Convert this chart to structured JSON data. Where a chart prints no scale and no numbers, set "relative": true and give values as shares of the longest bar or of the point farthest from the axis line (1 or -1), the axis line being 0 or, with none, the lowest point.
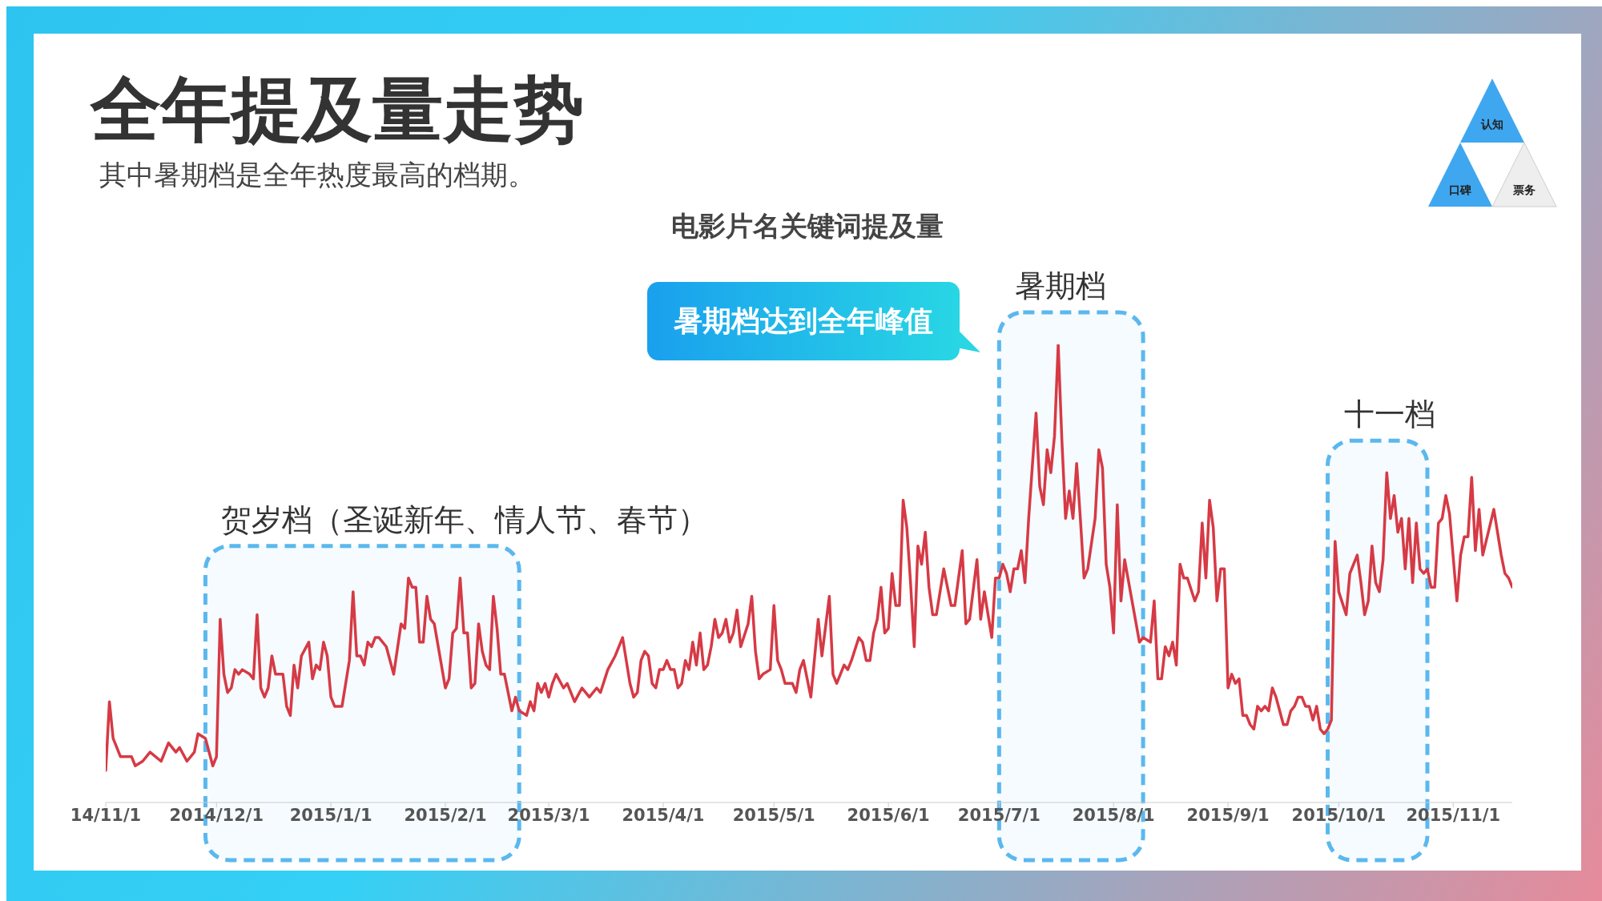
{
  "chart_data": {
    "type": "line",
    "title": "全年提及量走势",
    "subtitle": "其中暑期档是全年热度最高的档期。",
    "xlabel": "电影片名关键词提及量",
    "relative": true,
    "color": "#d63a45",
    "marker": "none",
    "line_style": "solid",
    "x": [
      "2014-11-01",
      "2014-11-02",
      "2014-11-03",
      "2014-11-05",
      "2014-11-08",
      "2014-11-09",
      "2014-11-11",
      "2014-11-13",
      "2014-11-16",
      "2014-11-18",
      "2014-11-20",
      "2014-11-21",
      "2014-11-23",
      "2014-11-25",
      "2014-11-26",
      "2014-11-28",
      "2014-11-30",
      "2014-12-01",
      "2014-12-02",
      "2014-12-03",
      "2014-12-04",
      "2014-12-05",
      "2014-12-06",
      "2014-12-07",
      "2014-12-08",
      "2014-12-10",
      "2014-12-11",
      "2014-12-12",
      "2014-12-13",
      "2014-12-14",
      "2014-12-15",
      "2014-12-16",
      "2014-12-17",
      "2014-12-19",
      "2014-12-20",
      "2014-12-21",
      "2014-12-22",
      "2014-12-23",
      "2014-12-24",
      "2014-12-26",
      "2014-12-27",
      "2014-12-28",
      "2014-12-29",
      "2014-12-30",
      "2014-12-31",
      "2015-01-01",
      "2015-01-02",
      "2015-01-04",
      "2015-01-06",
      "2015-01-07",
      "2015-01-08",
      "2015-01-09",
      "2015-01-10",
      "2015-01-11",
      "2015-01-12",
      "2015-01-13",
      "2015-01-14",
      "2015-01-16",
      "2015-01-18",
      "2015-01-20",
      "2015-01-21",
      "2015-01-22",
      "2015-01-23",
      "2015-01-24",
      "2015-01-25",
      "2015-01-26",
      "2015-01-27",
      "2015-01-28",
      "2015-01-29",
      "2015-02-01",
      "2015-02-02",
      "2015-02-03",
      "2015-02-04",
      "2015-02-05",
      "2015-02-06",
      "2015-02-07",
      "2015-02-08",
      "2015-02-09",
      "2015-02-10",
      "2015-02-11",
      "2015-02-12",
      "2015-02-13",
      "2015-02-14",
      "2015-02-15",
      "2015-02-16",
      "2015-02-17",
      "2015-02-19",
      "2015-02-20",
      "2015-02-21",
      "2015-02-23",
      "2015-02-24",
      "2015-02-25",
      "2015-02-26",
      "2015-02-27",
      "2015-02-28",
      "2015-03-01",
      "2015-03-02",
      "2015-03-03",
      "2015-03-05",
      "2015-03-06",
      "2015-03-08",
      "2015-03-10",
      "2015-03-12",
      "2015-03-14",
      "2015-03-15",
      "2015-03-17",
      "2015-03-19",
      "2015-03-21",
      "2015-03-23",
      "2015-03-24",
      "2015-03-25",
      "2015-03-26",
      "2015-03-27",
      "2015-03-28",
      "2015-03-29",
      "2015-03-30",
      "2015-03-31",
      "2015-04-01",
      "2015-04-02",
      "2015-04-03",
      "2015-04-04",
      "2015-04-05",
      "2015-04-06",
      "2015-04-07",
      "2015-04-08",
      "2015-04-09",
      "2015-04-10",
      "2015-04-11",
      "2015-04-12",
      "2015-04-13",
      "2015-04-14",
      "2015-04-15",
      "2015-04-16",
      "2015-04-17",
      "2015-04-18",
      "2015-04-19",
      "2015-04-20",
      "2015-04-21",
      "2015-04-22",
      "2015-04-24",
      "2015-04-25",
      "2015-04-26",
      "2015-04-27",
      "2015-04-28",
      "2015-04-30",
      "2015-05-01",
      "2015-05-02",
      "2015-05-03",
      "2015-05-04",
      "2015-05-05",
      "2015-05-06",
      "2015-05-07",
      "2015-05-08",
      "2015-05-09",
      "2015-05-10",
      "2015-05-11",
      "2015-05-13",
      "2015-05-14",
      "2015-05-16",
      "2015-05-17",
      "2015-05-18",
      "2015-05-20",
      "2015-05-21",
      "2015-05-22",
      "2015-05-24",
      "2015-05-25",
      "2015-05-26",
      "2015-05-27",
      "2015-05-28",
      "2015-05-29",
      "2015-05-30",
      "2015-05-31",
      "2015-06-01",
      "2015-06-02",
      "2015-06-03",
      "2015-06-04",
      "2015-06-05",
      "2015-06-06",
      "2015-06-07",
      "2015-06-08",
      "2015-06-09",
      "2015-06-10",
      "2015-06-11",
      "2015-06-12",
      "2015-06-13",
      "2015-06-14",
      "2015-06-16",
      "2015-06-17",
      "2015-06-18",
      "2015-06-19",
      "2015-06-21",
      "2015-06-22",
      "2015-06-23",
      "2015-06-25",
      "2015-06-26",
      "2015-06-27",
      "2015-06-28",
      "2015-06-29",
      "2015-06-30",
      "2015-07-01",
      "2015-07-02",
      "2015-07-03",
      "2015-07-04",
      "2015-07-05",
      "2015-07-06",
      "2015-07-07",
      "2015-07-08",
      "2015-07-09",
      "2015-07-11",
      "2015-07-12",
      "2015-07-13",
      "2015-07-14",
      "2015-07-15",
      "2015-07-16",
      "2015-07-17",
      "2015-07-18",
      "2015-07-19",
      "2015-07-20",
      "2015-07-21",
      "2015-07-22",
      "2015-07-23",
      "2015-07-24",
      "2015-07-25",
      "2015-07-27",
      "2015-07-28",
      "2015-07-29",
      "2015-07-30",
      "2015-07-31",
      "2015-08-01",
      "2015-08-02",
      "2015-08-03",
      "2015-08-04",
      "2015-08-06",
      "2015-08-08",
      "2015-08-09",
      "2015-08-11",
      "2015-08-12",
      "2015-08-13",
      "2015-08-14",
      "2015-08-15",
      "2015-08-16",
      "2015-08-17",
      "2015-08-18",
      "2015-08-19",
      "2015-08-20",
      "2015-08-21",
      "2015-08-23",
      "2015-08-24",
      "2015-08-25",
      "2015-08-26",
      "2015-08-27",
      "2015-08-28",
      "2015-08-29",
      "2015-08-30",
      "2015-08-31",
      "2015-09-01",
      "2015-09-02",
      "2015-09-03",
      "2015-09-04",
      "2015-09-05",
      "2015-09-06",
      "2015-09-07",
      "2015-09-08",
      "2015-09-09",
      "2015-09-10",
      "2015-09-11",
      "2015-09-12",
      "2015-09-13",
      "2015-09-14",
      "2015-09-16",
      "2015-09-17",
      "2015-09-18",
      "2015-09-19",
      "2015-09-20",
      "2015-09-21",
      "2015-09-22",
      "2015-09-23",
      "2015-09-24",
      "2015-09-25",
      "2015-09-26",
      "2015-09-27",
      "2015-09-28",
      "2015-09-29",
      "2015-09-30",
      "2015-10-01",
      "2015-10-03",
      "2015-10-04",
      "2015-10-06",
      "2015-10-07",
      "2015-10-08",
      "2015-10-09",
      "2015-10-10",
      "2015-10-11",
      "2015-10-12",
      "2015-10-13",
      "2015-10-14",
      "2015-10-15",
      "2015-10-16",
      "2015-10-17",
      "2015-10-18",
      "2015-10-19",
      "2015-10-20",
      "2015-10-21",
      "2015-10-22",
      "2015-10-23",
      "2015-10-24",
      "2015-10-25",
      "2015-10-26",
      "2015-10-27",
      "2015-10-28",
      "2015-10-29",
      "2015-10-30",
      "2015-10-31",
      "2015-11-02",
      "2015-11-03",
      "2015-11-04",
      "2015-11-05",
      "2015-11-06",
      "2015-11-07",
      "2015-11-08",
      "2015-11-09",
      "2015-11-12",
      "2015-11-14",
      "2015-11-15",
      "2015-11-16",
      "2015-11-17"
    ],
    "values": [
      0.07,
      0.22,
      0.14,
      0.1,
      0.1,
      0.08,
      0.09,
      0.11,
      0.09,
      0.13,
      0.11,
      0.12,
      0.09,
      0.11,
      0.15,
      0.14,
      0.08,
      0.1,
      0.4,
      0.28,
      0.24,
      0.25,
      0.29,
      0.28,
      0.29,
      0.28,
      0.27,
      0.41,
      0.25,
      0.23,
      0.25,
      0.32,
      0.28,
      0.28,
      0.21,
      0.19,
      0.3,
      0.25,
      0.32,
      0.35,
      0.27,
      0.3,
      0.29,
      0.35,
      0.32,
      0.23,
      0.21,
      0.21,
      0.31,
      0.46,
      0.32,
      0.32,
      0.3,
      0.35,
      0.34,
      0.36,
      0.36,
      0.34,
      0.28,
      0.39,
      0.38,
      0.49,
      0.47,
      0.47,
      0.35,
      0.35,
      0.45,
      0.4,
      0.39,
      0.25,
      0.27,
      0.37,
      0.38,
      0.49,
      0.37,
      0.37,
      0.25,
      0.26,
      0.39,
      0.33,
      0.3,
      0.29,
      0.45,
      0.38,
      0.28,
      0.28,
      0.2,
      0.23,
      0.2,
      0.19,
      0.22,
      0.2,
      0.26,
      0.24,
      0.26,
      0.23,
      0.26,
      0.28,
      0.25,
      0.26,
      0.22,
      0.25,
      0.23,
      0.25,
      0.24,
      0.29,
      0.32,
      0.36,
      0.26,
      0.23,
      0.24,
      0.31,
      0.33,
      0.32,
      0.26,
      0.25,
      0.29,
      0.29,
      0.31,
      0.29,
      0.29,
      0.25,
      0.26,
      0.31,
      0.29,
      0.35,
      0.3,
      0.37,
      0.29,
      0.3,
      0.34,
      0.4,
      0.36,
      0.37,
      0.4,
      0.35,
      0.37,
      0.42,
      0.34,
      0.39,
      0.45,
      0.33,
      0.27,
      0.28,
      0.29,
      0.43,
      0.31,
      0.29,
      0.26,
      0.26,
      0.26,
      0.24,
      0.29,
      0.31,
      0.27,
      0.23,
      0.4,
      0.32,
      0.45,
      0.28,
      0.26,
      0.3,
      0.29,
      0.31,
      0.36,
      0.35,
      0.31,
      0.31,
      0.37,
      0.4,
      0.47,
      0.37,
      0.38,
      0.5,
      0.43,
      0.43,
      0.66,
      0.6,
      0.48,
      0.34,
      0.56,
      0.52,
      0.59,
      0.47,
      0.41,
      0.41,
      0.51,
      0.47,
      0.43,
      0.43,
      0.55,
      0.39,
      0.4,
      0.53,
      0.4,
      0.46,
      0.41,
      0.36,
      0.49,
      0.49,
      0.52,
      0.5,
      0.46,
      0.51,
      0.51,
      0.55,
      0.48,
      0.62,
      0.85,
      0.69,
      0.65,
      0.77,
      0.72,
      0.8,
      1,
      0.79,
      0.62,
      0.68,
      0.62,
      0.74,
      0.62,
      0.49,
      0.51,
      0.62,
      0.77,
      0.73,
      0.52,
      0.47,
      0.37,
      0.65,
      0.44,
      0.53,
      0.44,
      0.35,
      0.36,
      0.35,
      0.44,
      0.27,
      0.27,
      0.34,
      0.32,
      0.35,
      0.3,
      0.52,
      0.49,
      0.49,
      0.44,
      0.46,
      0.61,
      0.49,
      0.66,
      0.6,
      0.44,
      0.51,
      0.51,
      0.25,
      0.28,
      0.26,
      0.27,
      0.19,
      0.19,
      0.17,
      0.16,
      0.21,
      0.2,
      0.21,
      0.2,
      0.25,
      0.23,
      0.17,
      0.17,
      0.2,
      0.21,
      0.23,
      0.23,
      0.21,
      0.21,
      0.18,
      0.21,
      0.16,
      0.15,
      0.16,
      0.18,
      0.57,
      0.46,
      0.41,
      0.5,
      0.54,
      0.48,
      0.41,
      0.44,
      0.56,
      0.48,
      0.46,
      0.53,
      0.72,
      0.62,
      0.67,
      0.59,
      0.62,
      0.51,
      0.62,
      0.48,
      0.61,
      0.51,
      0.5,
      0.51,
      0.47,
      0.47,
      0.61,
      0.62,
      0.67,
      0.63,
      0.44,
      0.54,
      0.58,
      0.58,
      0.71,
      0.55,
      0.64,
      0.54,
      0.64,
      0.54,
      0.5,
      0.49,
      0.47
    ],
    "xlim": [
      "2014-11-01",
      "2015-11-17"
    ],
    "xticks": [
      {
        "value": "2014-11-01",
        "label": "14/11/1"
      },
      {
        "value": "2014-12-01",
        "label": "2014/12/1"
      },
      {
        "value": "2015-01-01",
        "label": "2015/1/1"
      },
      {
        "value": "2015-02-01",
        "label": "2015/2/1"
      },
      {
        "value": "2015-03-01",
        "label": "2015/3/1"
      },
      {
        "value": "2015-04-01",
        "label": "2015/4/1"
      },
      {
        "value": "2015-05-01",
        "label": "2015/5/1"
      },
      {
        "value": "2015-06-01",
        "label": "2015/6/1"
      },
      {
        "value": "2015-07-01",
        "label": "2015/7/1"
      },
      {
        "value": "2015-08-01",
        "label": "2015/8/1"
      },
      {
        "value": "2015-09-01",
        "label": "2015/9/1"
      },
      {
        "value": "2015-10-01",
        "label": "2015/10/1"
      },
      {
        "value": "2015-11-01",
        "label": "2015/11/1"
      }
    ],
    "bands": [
      {
        "axis": "x",
        "from": "2014-11-28",
        "to": "2015-02-21",
        "label": "贺岁档（圣诞新年、情人节、春节）",
        "color": "#5bb8ee"
      },
      {
        "axis": "x",
        "from": "2015-07-01",
        "to": "2015-08-09",
        "label": "暑期档",
        "color": "#5bb8ee"
      },
      {
        "axis": "x",
        "from": "2015-09-28",
        "to": "2015-10-25",
        "label": "十一档",
        "color": "#5bb8ee"
      }
    ],
    "annotations": [
      "暑期档达到全年峰值",
      "认知",
      "口碑",
      "票务"
    ]
  }
}
